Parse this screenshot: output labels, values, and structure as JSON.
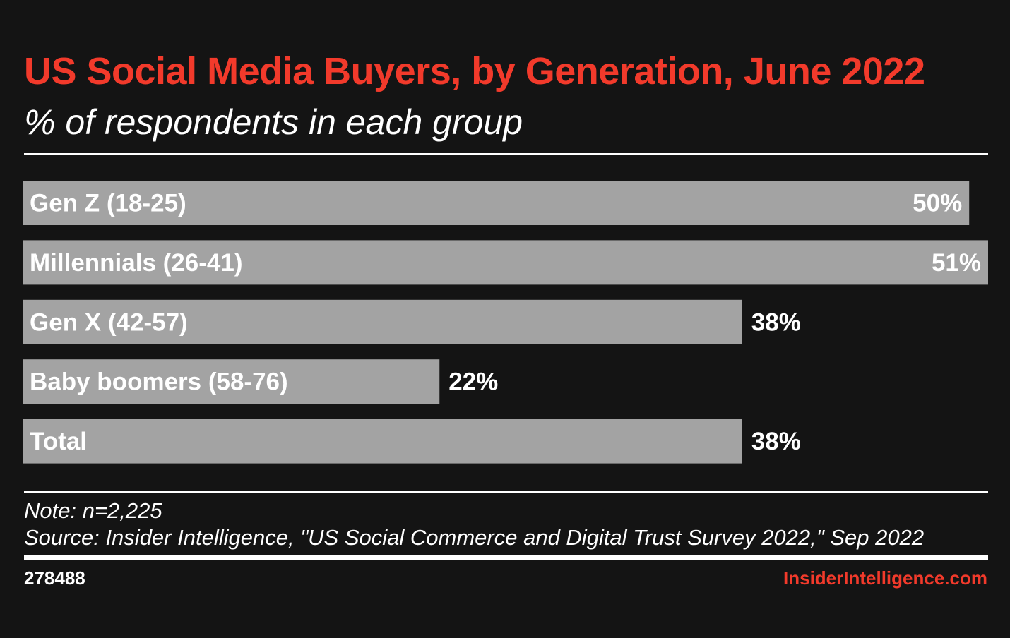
{
  "colors": {
    "background": "#141414",
    "accent": "#f23a2b",
    "bar": "#a3a3a3",
    "text": "#ffffff"
  },
  "chart_data": {
    "type": "bar",
    "orientation": "horizontal",
    "title": "US Social Media Buyers, by Generation, June 2022",
    "subtitle": "% of respondents in each group",
    "categories": [
      "Gen Z (18-25)",
      "Millennials (26-41)",
      "Gen X (42-57)",
      "Baby boomers (58-76)",
      "Total"
    ],
    "values": [
      50,
      51,
      38,
      22,
      38
    ],
    "value_labels": [
      "50%",
      "51%",
      "38%",
      "22%",
      "38%"
    ],
    "unit": "%",
    "xlim": [
      0,
      51
    ],
    "grid": false,
    "legend": "none"
  },
  "footer": {
    "note": "Note: n=2,225",
    "source": "Source: Insider Intelligence, \"US Social Commerce and Digital Trust Survey 2022,\" Sep 2022",
    "chart_id": "278488",
    "brand": "InsiderIntelligence.com"
  }
}
